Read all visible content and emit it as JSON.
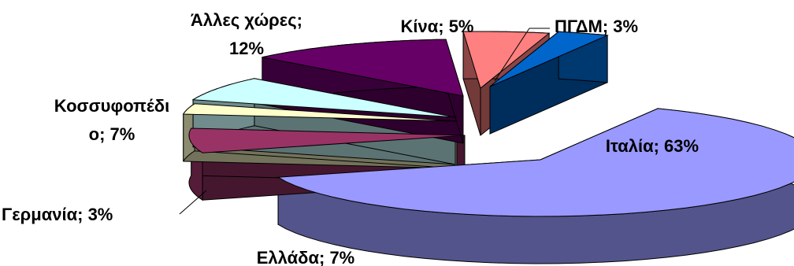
{
  "chart_data": {
    "type": "pie",
    "variant": "3d-exploded",
    "slices": [
      {
        "label": "Ιταλία",
        "value": 63,
        "text": "Ιταλία; 63%",
        "color": "#9999FF"
      },
      {
        "label": "Ελλάδα",
        "value": 7,
        "text": "Ελλάδα; 7%",
        "color": "#993366"
      },
      {
        "label": "Γερμανία",
        "value": 3,
        "text": "Γερμανία; 3%",
        "color": "#FFFFCC"
      },
      {
        "label": "Κοσσυφοπέδιο",
        "value": 7,
        "text_lines": [
          "Κοσσυφοπέδι",
          "ο; 7%"
        ],
        "color": "#CCFFFF"
      },
      {
        "label": "Άλλες χώρες",
        "value": 12,
        "text_lines": [
          "Άλλες χώρες;",
          "12%"
        ],
        "color": "#660066"
      },
      {
        "label": "Κίνα",
        "value": 5,
        "text": "Κίνα; 5%",
        "color": "#FF8080"
      },
      {
        "label": "ΠΓΔΜ",
        "value": 3,
        "text": "ΠΓΔΜ; 3%",
        "color": "#0066CC"
      }
    ]
  }
}
